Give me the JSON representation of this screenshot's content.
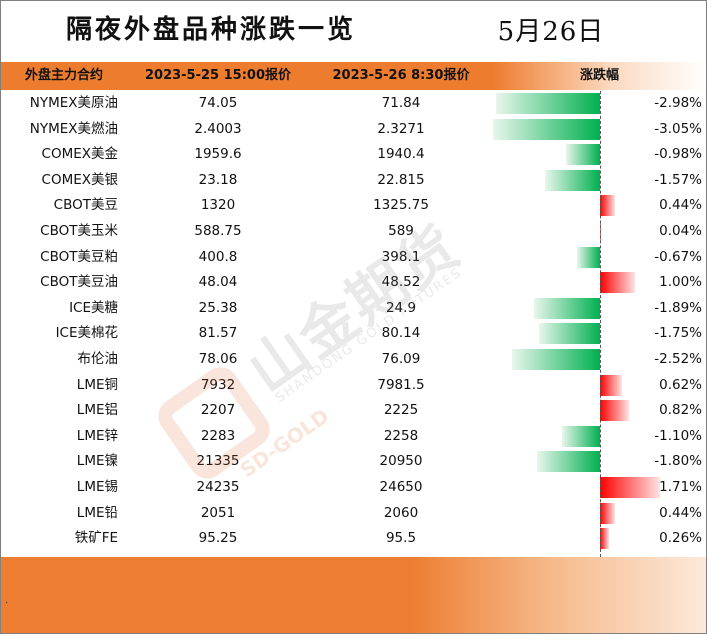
{
  "title": "隔夜外盘品种涨跌一览",
  "date": "5月26日",
  "headers": {
    "name": "外盘主力合约",
    "prev": "2023-5-25 15:00报价",
    "curr": "2023-5-26 8:30报价",
    "change": "涨跌幅"
  },
  "rows": [
    {
      "name": "NYMEX美原油",
      "prev": "74.05",
      "curr": "71.84",
      "change": "-2.98%",
      "pct": -2.98
    },
    {
      "name": "NYMEX美燃油",
      "prev": "2.4003",
      "curr": "2.3271",
      "change": "-3.05%",
      "pct": -3.05
    },
    {
      "name": "COMEX美金",
      "prev": "1959.6",
      "curr": "1940.4",
      "change": "-0.98%",
      "pct": -0.98
    },
    {
      "name": "COMEX美银",
      "prev": "23.18",
      "curr": "22.815",
      "change": "-1.57%",
      "pct": -1.57
    },
    {
      "name": "CBOT美豆",
      "prev": "1320",
      "curr": "1325.75",
      "change": "0.44%",
      "pct": 0.44
    },
    {
      "name": "CBOT美玉米",
      "prev": "588.75",
      "curr": "589",
      "change": "0.04%",
      "pct": 0.04
    },
    {
      "name": "CBOT美豆粕",
      "prev": "400.8",
      "curr": "398.1",
      "change": "-0.67%",
      "pct": -0.67
    },
    {
      "name": "CBOT美豆油",
      "prev": "48.04",
      "curr": "48.52",
      "change": "1.00%",
      "pct": 1.0
    },
    {
      "name": "ICE美糖",
      "prev": "25.38",
      "curr": "24.9",
      "change": "-1.89%",
      "pct": -1.89
    },
    {
      "name": "ICE美棉花",
      "prev": "81.57",
      "curr": "80.14",
      "change": "-1.75%",
      "pct": -1.75
    },
    {
      "name": "布伦油",
      "prev": "78.06",
      "curr": "76.09",
      "change": "-2.52%",
      "pct": -2.52
    },
    {
      "name": "LME铜",
      "prev": "7932",
      "curr": "7981.5",
      "change": "0.62%",
      "pct": 0.62
    },
    {
      "name": "LME铝",
      "prev": "2207",
      "curr": "2225",
      "change": "0.82%",
      "pct": 0.82
    },
    {
      "name": "LME锌",
      "prev": "2283",
      "curr": "2258",
      "change": "-1.10%",
      "pct": -1.1
    },
    {
      "name": "LME镍",
      "prev": "21335",
      "curr": "20950",
      "change": "-1.80%",
      "pct": -1.8
    },
    {
      "name": "LME锡",
      "prev": "24235",
      "curr": "24650",
      "change": "1.71%",
      "pct": 1.71
    },
    {
      "name": "LME铅",
      "prev": "2051",
      "curr": "2060",
      "change": "0.44%",
      "pct": 0.44
    },
    {
      "name": "铁矿FE",
      "prev": "95.25",
      "curr": "95.5",
      "change": "0.26%",
      "pct": 0.26
    }
  ],
  "footer_mark": ".",
  "watermark": {
    "text": "山金期货",
    "sub": "SHANDONG GOLD FUTURES",
    "sub2": "SD-GOLD"
  },
  "colors": {
    "header_bg": "#ee7c2f",
    "negative_bar": "#00b050",
    "positive_bar": "#ff0000",
    "footer_bg": "#ed7d31"
  }
}
